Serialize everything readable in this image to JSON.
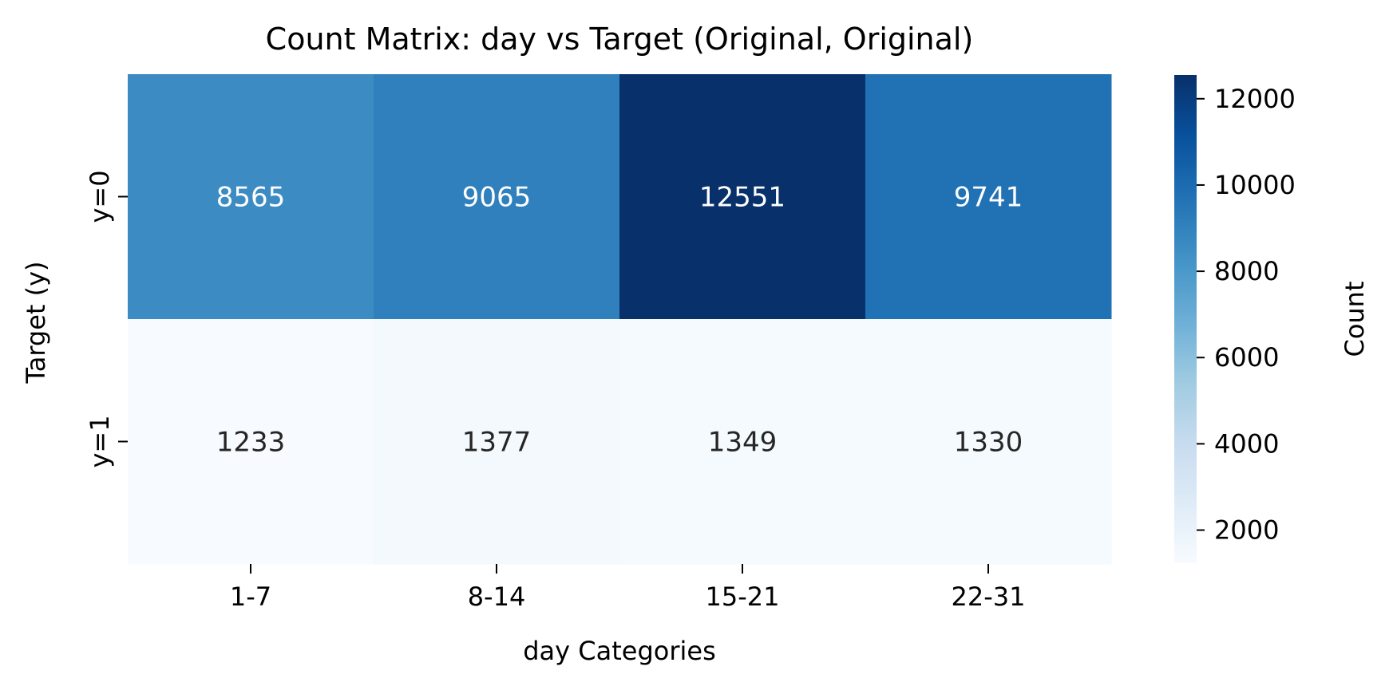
{
  "chart_data": {
    "type": "heatmap",
    "title": "Count Matrix: day vs Target (Original, Original)",
    "xlabel": "day Categories",
    "ylabel": "Target (y)",
    "x_categories": [
      "1-7",
      "8-14",
      "15-21",
      "22-31"
    ],
    "y_categories": [
      "y=0",
      "y=1"
    ],
    "values": [
      [
        8565,
        9065,
        12551,
        9741
      ],
      [
        1233,
        1377,
        1349,
        1330
      ]
    ],
    "colormap": "Blues",
    "colorbar": {
      "label": "Count",
      "range": [
        1233,
        12551
      ],
      "ticks": [
        2000,
        4000,
        6000,
        8000,
        10000,
        12000
      ]
    },
    "colors": {
      "dark_text": "#262626",
      "light_text": "#ffffff"
    }
  }
}
